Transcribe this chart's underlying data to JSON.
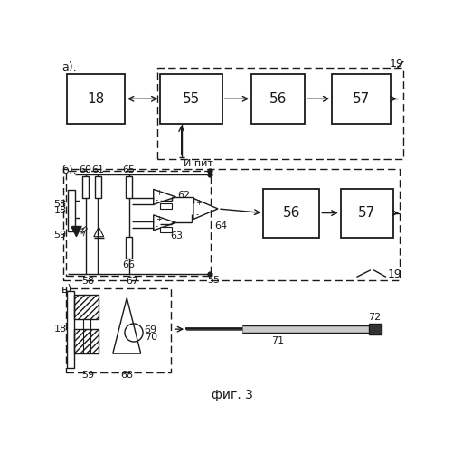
{
  "fig_width": 5.02,
  "fig_height": 5.0,
  "dpi": 100,
  "bg_color": "#ffffff",
  "lc": "#1a1a1a",
  "sec_a": "а).",
  "sec_b": "б).",
  "sec_c": "в).",
  "caption": "фиг. 3",
  "И_пит": "И пит",
  "n19": "19",
  "n55": "55",
  "n56": "56",
  "n57": "57",
  "n18": "18",
  "n60": "60",
  "n61": "61",
  "n62": "62",
  "n63": "63",
  "n64": "64",
  "n65": "65",
  "n66": "66",
  "n58": "58",
  "n59": "59",
  "n67": "67",
  "n68": "68",
  "n69": "69",
  "n70": "70",
  "n71": "71",
  "n72": "72"
}
